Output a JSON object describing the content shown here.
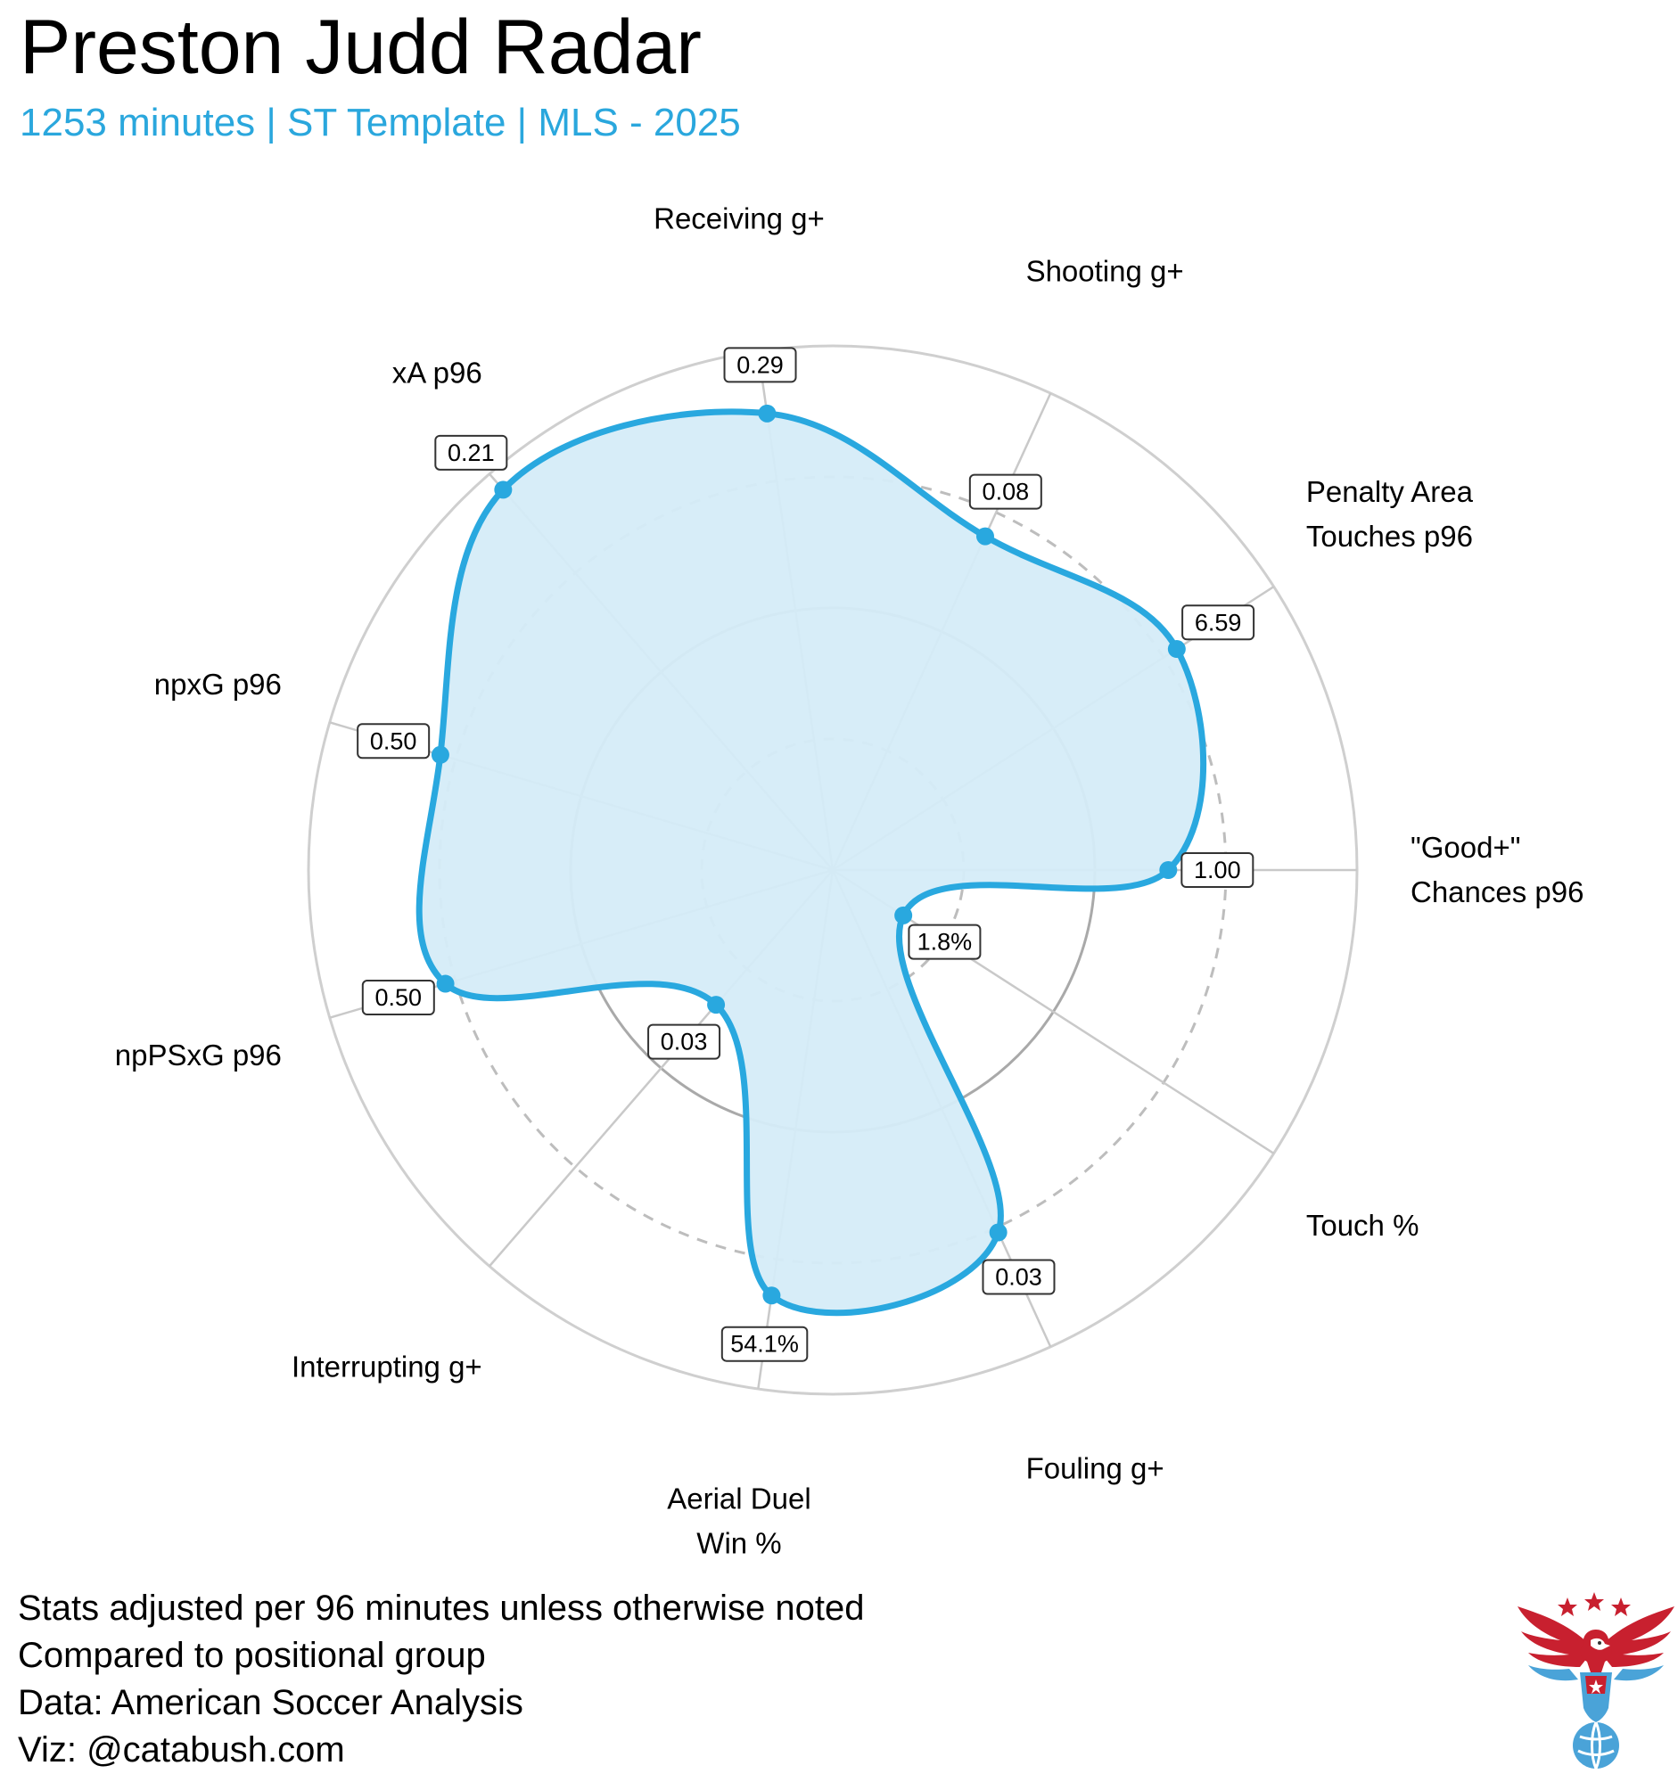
{
  "header": {
    "title": "Preston Judd Radar",
    "subtitle": "1253 minutes | ST Template | MLS - 2025"
  },
  "chart_data": {
    "type": "radar",
    "title": "Preston Judd Radar",
    "subtitle": "1253 minutes | ST Template | MLS - 2025",
    "scale": "percentile",
    "range": [
      0,
      100
    ],
    "grid_rings": [
      25,
      50,
      75,
      100
    ],
    "dashed_rings": [
      25,
      75
    ],
    "series": [
      {
        "name": "Preston Judd",
        "color": "#29a8df",
        "fill": "#d5ecf8"
      }
    ],
    "categories": [
      {
        "label": [
          "\"Good+\"",
          "Chances p96"
        ],
        "value": "1.00",
        "percentile": 64
      },
      {
        "label": [
          "Touch %"
        ],
        "value": "1.8%",
        "percentile": 16
      },
      {
        "label": [
          "Fouling g+"
        ],
        "value": "0.03",
        "percentile": 76
      },
      {
        "label": [
          "Aerial Duel",
          "Win %"
        ],
        "value": "54.1%",
        "percentile": 82
      },
      {
        "label": [
          "Interrupting g+"
        ],
        "value": "0.03",
        "percentile": 34
      },
      {
        "label": [
          "npPSxG p96"
        ],
        "value": "0.50",
        "percentile": 77
      },
      {
        "label": [
          "npxG p96"
        ],
        "value": "0.50",
        "percentile": 78
      },
      {
        "label": [
          "xA p96"
        ],
        "value": "0.21",
        "percentile": 96
      },
      {
        "label": [
          "Receiving g+"
        ],
        "value": "0.29",
        "percentile": 88
      },
      {
        "label": [
          "Shooting g+"
        ],
        "value": "0.08",
        "percentile": 70
      },
      {
        "label": [
          "Penalty Area",
          "Touches p96"
        ],
        "value": "6.59",
        "percentile": 78
      }
    ]
  },
  "footer": {
    "lines": [
      "Stats adjusted per 96 minutes unless otherwise noted",
      "Compared to positional group",
      "Data: American Soccer Analysis",
      "Viz: @catabush.com"
    ]
  },
  "logo": {
    "icon": "eagle-soccer-ball-icon",
    "colors": [
      "#c8202f",
      "#4aa3d8",
      "#ffffff"
    ]
  }
}
